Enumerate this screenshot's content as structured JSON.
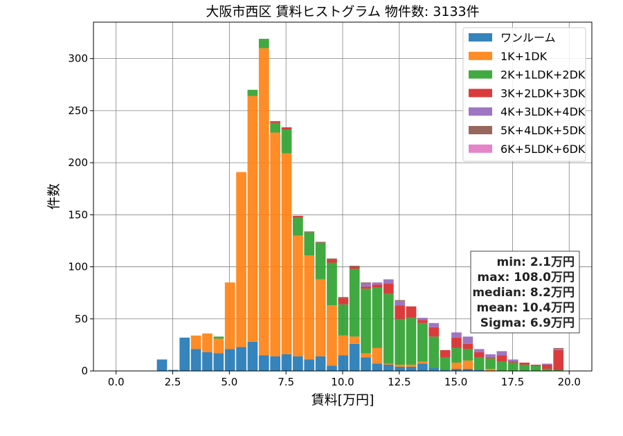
{
  "chart_data": {
    "type": "bar",
    "stacked": true,
    "title": "大阪市西区 賃料ヒストグラム  物件数: 3133件",
    "xlabel": "賃料[万円]",
    "ylabel": "件数",
    "xlim": [
      -1,
      21
    ],
    "ylim": [
      0,
      335
    ],
    "xticks": [
      "0.0",
      "2.5",
      "5.0",
      "7.5",
      "10.0",
      "12.5",
      "15.0",
      "17.5",
      "20.0"
    ],
    "yticks": [
      "0",
      "50",
      "100",
      "150",
      "200",
      "250",
      "300"
    ],
    "grid": true,
    "legend_position": "top-right",
    "bin_width": 0.5,
    "bin_starts": [
      1.8,
      2.3,
      2.8,
      3.3,
      3.8,
      4.3,
      4.8,
      5.3,
      5.8,
      6.3,
      6.8,
      7.3,
      7.8,
      8.3,
      8.8,
      9.3,
      9.8,
      10.3,
      10.8,
      11.3,
      11.8,
      12.3,
      12.8,
      13.3,
      13.8,
      14.3,
      14.8,
      15.3,
      15.8,
      16.3,
      16.8,
      17.3,
      17.8,
      18.3,
      18.8,
      19.3
    ],
    "series": [
      {
        "name": "ワンルーム",
        "color": "#1f77b4",
        "values": [
          11,
          1,
          32,
          21,
          18,
          17,
          21,
          23,
          28,
          15,
          14,
          16,
          14,
          11,
          14,
          5,
          15,
          26,
          13,
          7,
          6,
          4,
          4,
          7,
          3,
          1,
          2,
          2,
          1,
          0,
          0,
          0,
          0,
          0,
          0,
          0
        ]
      },
      {
        "name": "1K+1DK",
        "color": "#ff7f0e",
        "values": [
          0,
          0,
          0,
          13,
          18,
          14,
          64,
          168,
          236,
          295,
          215,
          193,
          116,
          100,
          74,
          58,
          19,
          7,
          4,
          15,
          1,
          2,
          2,
          2,
          0,
          0,
          6,
          8,
          0,
          2,
          0,
          0,
          0,
          0,
          0,
          0
        ]
      },
      {
        "name": "2K+1LDK+2DK",
        "color": "#2ca02c",
        "values": [
          0,
          0,
          0,
          0,
          0,
          2,
          0,
          0,
          6,
          9,
          9,
          23,
          17,
          22,
          35,
          41,
          30,
          65,
          62,
          58,
          67,
          44,
          45,
          37,
          30,
          12,
          14,
          11,
          12,
          10,
          9,
          8,
          6,
          5,
          2,
          1
        ]
      },
      {
        "name": "3K+2LDK+3DK",
        "color": "#d62728",
        "values": [
          0,
          0,
          0,
          0,
          0,
          0,
          0,
          0,
          0,
          0,
          1,
          2,
          2,
          0,
          0,
          3,
          6,
          2,
          2,
          3,
          10,
          13,
          11,
          3,
          9,
          7,
          10,
          5,
          5,
          1,
          6,
          1,
          2,
          1,
          4,
          19
        ]
      },
      {
        "name": "4K+3LDK+4DK",
        "color": "#9467bd",
        "values": [
          0,
          0,
          0,
          0,
          0,
          0,
          0,
          0,
          0,
          0,
          0,
          0,
          0,
          0,
          0,
          0,
          0,
          0,
          3,
          2,
          4,
          4,
          0,
          2,
          4,
          0,
          5,
          7,
          3,
          3,
          4,
          2,
          0,
          0,
          1,
          1
        ]
      },
      {
        "name": "5K+4LDK+5DK",
        "color": "#8c564b",
        "values": [
          0,
          0,
          0,
          0,
          0,
          0,
          0,
          0,
          0,
          0,
          1,
          0,
          0,
          1,
          1,
          1,
          1,
          1,
          1,
          0,
          0,
          1,
          0,
          0,
          0,
          0,
          0,
          0,
          0,
          0,
          0,
          0,
          0,
          0,
          0,
          1
        ]
      },
      {
        "name": "6K+5LDK+6DK",
        "color": "#e377c2",
        "values": [
          0,
          0,
          0,
          0,
          0,
          0,
          0,
          0,
          0,
          0,
          0,
          0,
          0,
          0,
          0,
          0,
          0,
          0,
          0,
          0,
          0,
          0,
          0,
          0,
          0,
          0,
          0,
          0,
          0,
          0,
          0,
          0,
          0,
          0,
          0,
          0
        ]
      }
    ],
    "stats": [
      "min: 2.1万円",
      "max: 108.0万円",
      "median: 8.2万円",
      "mean: 10.4万円",
      "Sigma: 6.9万円"
    ]
  }
}
